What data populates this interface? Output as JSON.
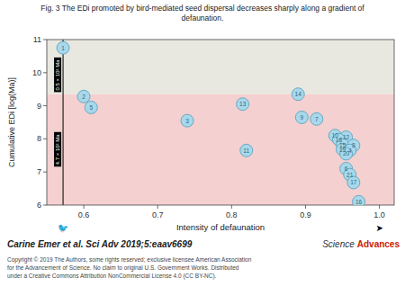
{
  "chart_data": {
    "type": "scatter",
    "title": "Fig. 3 The EDi promoted by bird-mediated seed dispersal decreases sharply along a gradient of\ndefaunation.",
    "xlabel": "Intensity of defaunation",
    "ylabel": "Cumulative EDi [log(Ma)]",
    "x": [
      0.572,
      0.6,
      0.61,
      0.74,
      0.815,
      0.89,
      0.895,
      0.915,
      0.82,
      0.94,
      0.955,
      0.945,
      0.95,
      0.965,
      0.95,
      0.96,
      0.955,
      0.955,
      0.96,
      0.965,
      0.972
    ],
    "values": [
      10.75,
      9.28,
      8.95,
      8.55,
      9.05,
      9.35,
      8.65,
      8.6,
      7.65,
      8.1,
      8.05,
      7.98,
      7.82,
      7.8,
      7.68,
      7.65,
      7.55,
      7.1,
      6.92,
      6.68,
      6.1
    ],
    "labels": [
      "1",
      "2",
      "5",
      "3",
      "13",
      "14",
      "9",
      "7",
      "11",
      "10",
      "12",
      "18",
      "15",
      "8",
      "19",
      "4",
      "20",
      "6",
      "21",
      "17",
      "16"
    ],
    "color": "#a8d8ea",
    "marker": "circle",
    "grid": false,
    "xlim": [
      0.55,
      1.02
    ],
    "ylim": [
      6.0,
      11.0
    ],
    "xticks": [
      0.6,
      0.7,
      0.8,
      0.9,
      {
        "value": 1.0,
        "label": "1.0"
      }
    ],
    "yticks": [
      6,
      7,
      8,
      9,
      10,
      11
    ],
    "bands": [
      {
        "ymin": 9.35,
        "ymax": 11.0,
        "color": "#e8e8e0"
      },
      {
        "ymin": 6.0,
        "ymax": 9.35,
        "color": "#f5d0d0"
      }
    ],
    "vline": {
      "x": 0.572,
      "labels": [
        "0.5 × 10² Ma",
        "4.7 × 10² Ma"
      ]
    },
    "citation": "Carine Emer et al. Sci Adv 2019;5:eaav6699",
    "copyright": "Copyright © 2019 The Authors, some rights reserved; exclusive licensee American Association\nfor the Advancement of Science. No claim to original U.S. Government Works. Distributed\nunder a Creative Commons Attribution NonCommercial License 4.0 (CC BY-NC).",
    "logo": [
      "Science",
      "Advances"
    ],
    "icons": [
      "🐦",
      "➤"
    ]
  }
}
